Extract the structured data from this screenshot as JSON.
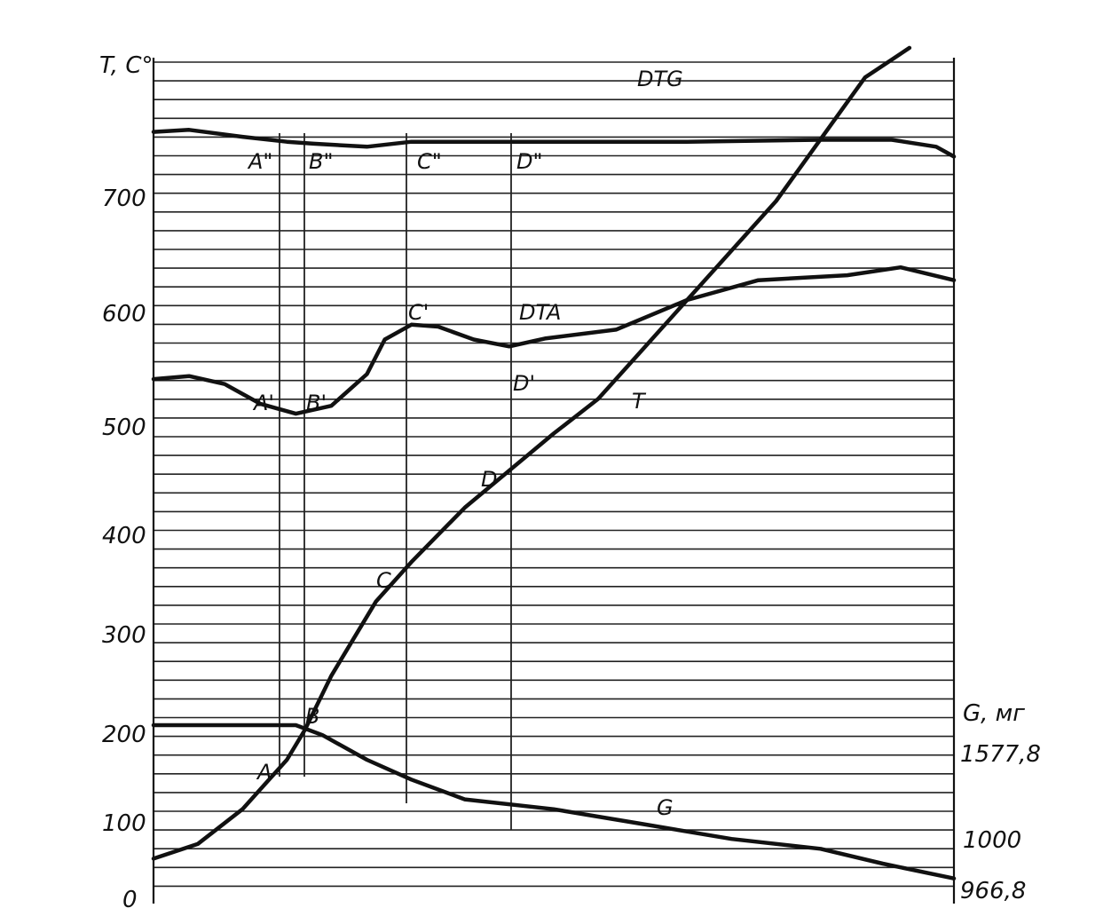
{
  "chart_data": {
    "type": "line",
    "title": "",
    "y_axis_left": {
      "label": "T, C°",
      "ticks": [
        "0",
        "100",
        "200",
        "300",
        "400",
        "500",
        "600",
        "700"
      ],
      "range": [
        0,
        850
      ]
    },
    "y_axis_right": {
      "label": "G, мг",
      "ticks": [
        "1577,8",
        "1000",
        "966,8"
      ]
    },
    "grid": true,
    "series": [
      {
        "name": "T",
        "role": "temperature",
        "points": [
          [
            0,
            40
          ],
          [
            0.05,
            55
          ],
          [
            0.1,
            90
          ],
          [
            0.15,
            140
          ],
          [
            0.17,
            170
          ],
          [
            0.2,
            225
          ],
          [
            0.25,
            300
          ],
          [
            0.29,
            340
          ],
          [
            0.35,
            395
          ],
          [
            0.45,
            470
          ],
          [
            0.5,
            505
          ],
          [
            0.55,
            555
          ],
          [
            0.6,
            605
          ],
          [
            0.7,
            705
          ],
          [
            0.8,
            830
          ],
          [
            0.85,
            860
          ]
        ]
      },
      {
        "name": "DTA",
        "role": "differential thermal analysis",
        "points": [
          [
            0,
            525
          ],
          [
            0.04,
            528
          ],
          [
            0.08,
            520
          ],
          [
            0.12,
            500
          ],
          [
            0.16,
            490
          ],
          [
            0.2,
            498
          ],
          [
            0.24,
            530
          ],
          [
            0.26,
            565
          ],
          [
            0.29,
            580
          ],
          [
            0.32,
            578
          ],
          [
            0.36,
            565
          ],
          [
            0.4,
            558
          ],
          [
            0.44,
            566
          ],
          [
            0.52,
            575
          ],
          [
            0.6,
            605
          ],
          [
            0.68,
            625
          ],
          [
            0.78,
            630
          ],
          [
            0.84,
            638
          ],
          [
            0.9,
            625
          ]
        ]
      },
      {
        "name": "DTG",
        "role": "differential thermogravimetry",
        "points": [
          [
            0,
            775
          ],
          [
            0.04,
            777
          ],
          [
            0.1,
            770
          ],
          [
            0.15,
            765
          ],
          [
            0.18,
            763
          ],
          [
            0.24,
            760
          ],
          [
            0.29,
            765
          ],
          [
            0.4,
            765
          ],
          [
            0.5,
            765
          ],
          [
            0.6,
            765
          ],
          [
            0.75,
            767
          ],
          [
            0.83,
            767
          ],
          [
            0.88,
            760
          ],
          [
            0.9,
            750
          ]
        ]
      },
      {
        "name": "G",
        "role": "mass",
        "points": [
          [
            0,
            175
          ],
          [
            0.16,
            175
          ],
          [
            0.19,
            165
          ],
          [
            0.24,
            140
          ],
          [
            0.29,
            120
          ],
          [
            0.35,
            100
          ],
          [
            0.45,
            90
          ],
          [
            0.55,
            75
          ],
          [
            0.65,
            60
          ],
          [
            0.75,
            50
          ],
          [
            0.82,
            35
          ],
          [
            0.9,
            20
          ]
        ]
      }
    ],
    "markers": [
      {
        "label": "A\"",
        "group": "DTG"
      },
      {
        "label": "B\"",
        "group": "DTG"
      },
      {
        "label": "C\"",
        "group": "DTG"
      },
      {
        "label": "D\"",
        "group": "DTG"
      },
      {
        "label": "A'",
        "group": "DTA"
      },
      {
        "label": "B'",
        "group": "DTA"
      },
      {
        "label": "C'",
        "group": "DTA"
      },
      {
        "label": "D'",
        "group": "DTA"
      },
      {
        "label": "A",
        "group": "T"
      },
      {
        "label": "B",
        "group": "T"
      },
      {
        "label": "C",
        "group": "T"
      },
      {
        "label": "D",
        "group": "T"
      }
    ]
  }
}
